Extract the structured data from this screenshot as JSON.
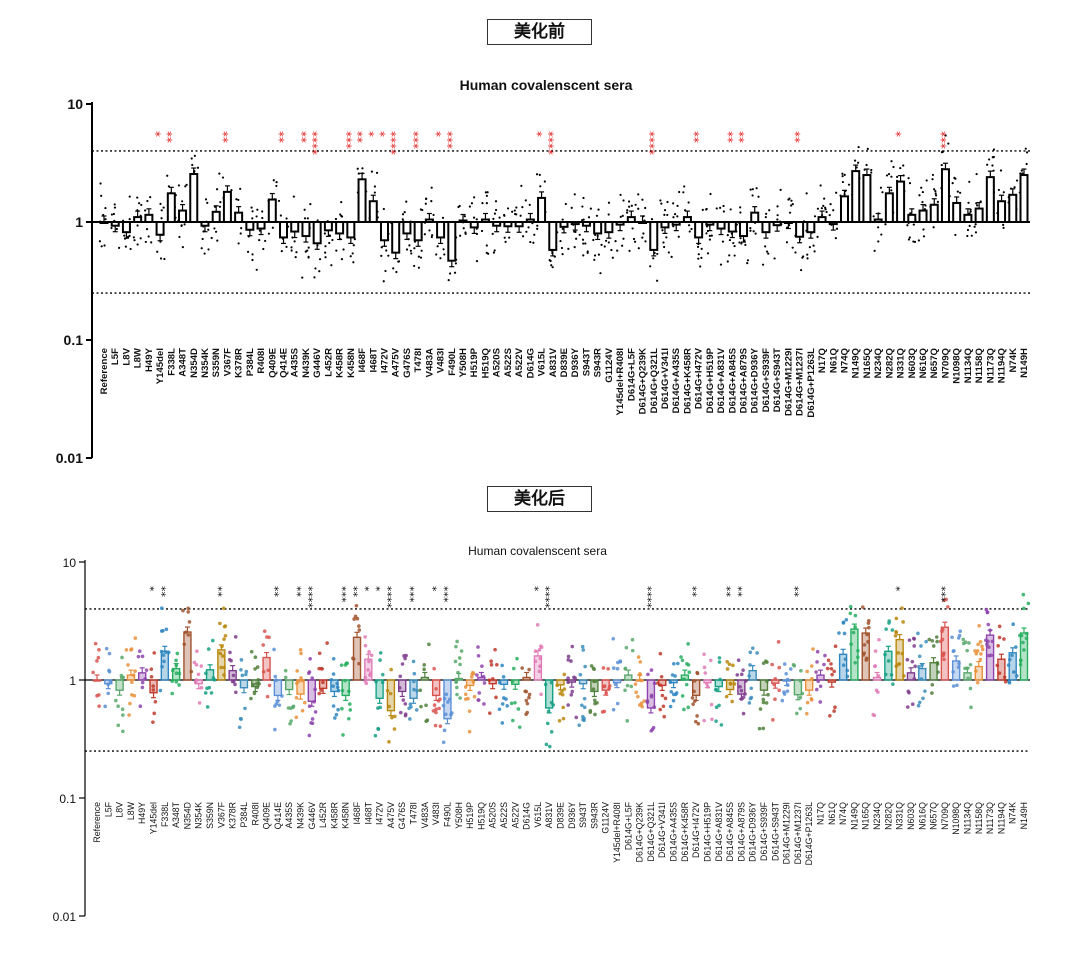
{
  "sections": {
    "before_label": "美化前",
    "after_label": "美化后"
  },
  "chart_data": [
    {
      "type": "bar",
      "variant": "before",
      "title": "Human covalenscent sera",
      "scale": "log",
      "ylim": [
        0.01,
        10
      ],
      "yticks": [
        "0.01",
        "0.1",
        "1",
        "10"
      ],
      "reference_lines": [
        4,
        0.25
      ],
      "bar_fill": "#ffffff",
      "bar_stroke": "#000000",
      "star_color": "#e01e1e",
      "categories": [
        "Reference",
        "L5F",
        "L8V",
        "L8W",
        "H49Y",
        "Y145del",
        "F338L",
        "A348T",
        "N354D",
        "N354K",
        "S359N",
        "V367F",
        "K378R",
        "P384L",
        "R408I",
        "Q409E",
        "Q414E",
        "A435S",
        "N439K",
        "G446V",
        "L452R",
        "K458R",
        "K458N",
        "I468F",
        "I468T",
        "I472V",
        "A475V",
        "G476S",
        "T478I",
        "V483A",
        "V483I",
        "F490L",
        "Y508H",
        "H519P",
        "H519Q",
        "A520S",
        "A522S",
        "A522V",
        "D614G",
        "V615L",
        "A831V",
        "D839E",
        "D936Y",
        "S943T",
        "S943R",
        "G1124V",
        "Y145del+R408I",
        "D614G+L5F",
        "D614G+Q239K",
        "D614G+Q321L",
        "D614G+V341I",
        "D614G+A435S",
        "D614G+K458R",
        "D614G+I472V",
        "D614G+H519P",
        "D614G+A831V",
        "D614G+A845S",
        "D614G+A879S",
        "D614G+D936Y",
        "D614G+S939F",
        "D614G+S943T",
        "D614G+M1229I",
        "D614G+M1237I",
        "D614G+P1263L",
        "N17Q",
        "N61Q",
        "N74Q",
        "N149Q",
        "N165Q",
        "N234Q",
        "N282Q",
        "N331Q",
        "N603Q",
        "N616Q",
        "N657Q",
        "N709Q",
        "N1098Q",
        "N1134Q",
        "N1158Q",
        "N1173Q",
        "N1194Q",
        "N74K",
        "N149H"
      ],
      "values": [
        1.0,
        0.93,
        0.82,
        1.1,
        1.15,
        0.78,
        1.75,
        1.25,
        2.55,
        0.93,
        1.22,
        1.8,
        1.2,
        0.86,
        0.88,
        1.55,
        0.74,
        0.83,
        0.76,
        0.66,
        0.85,
        0.8,
        0.74,
        2.3,
        1.5,
        0.7,
        0.55,
        0.8,
        0.7,
        1.05,
        0.74,
        0.47,
        1.03,
        0.9,
        1.05,
        0.93,
        0.92,
        0.92,
        1.05,
        1.6,
        0.58,
        0.91,
        0.96,
        0.93,
        0.8,
        0.82,
        0.95,
        1.1,
        1.0,
        0.58,
        0.9,
        0.95,
        1.1,
        0.74,
        0.95,
        0.88,
        0.83,
        0.76,
        1.2,
        0.82,
        0.94,
        0.99,
        0.75,
        0.82,
        1.1,
        0.96,
        1.65,
        2.7,
        2.5,
        1.05,
        1.75,
        2.2,
        1.15,
        1.25,
        1.4,
        2.8,
        1.45,
        1.15,
        1.3,
        2.4,
        1.5,
        1.7,
        2.5
      ],
      "significance": {
        "Y145del": "*",
        "F338L": "**",
        "V367F": "**",
        "Q414E": "**",
        "N439K": "**",
        "G446V": "****",
        "K458N": "***",
        "I468F": "**",
        "I468T": "*",
        "I472V": "*",
        "A475V": "****",
        "T478I": "***",
        "V483I": "*",
        "F490L": "***",
        "V615L": "*",
        "A831V": "****",
        "D614G+Q321L": "****",
        "D614G+I472V": "**",
        "D614G+A845S": "**",
        "D614G+A879S": "**",
        "D614G+M1237I": "**",
        "N331Q": "*",
        "N709Q": "***"
      }
    },
    {
      "type": "bar",
      "variant": "after",
      "title": "Human covalenscent sera",
      "scale": "log",
      "ylim": [
        0.01,
        10
      ],
      "yticks": [
        "0.01",
        "0.1",
        "1",
        "10"
      ],
      "reference_lines": [
        4,
        0.25
      ],
      "star_color": "#111111",
      "palette": [
        "#d9534f",
        "#5b8fd6",
        "#58a86b",
        "#e8913a",
        "#8e44ad",
        "#c0392b",
        "#2e86c1",
        "#27ae60",
        "#a0522d",
        "#e07bb6",
        "#16a085",
        "#b8860b",
        "#7f3c8d",
        "#3c8dbc",
        "#4f7f3a"
      ],
      "categories": [
        "Reference",
        "L5F",
        "L8V",
        "L8W",
        "H49Y",
        "Y145del",
        "F338L",
        "A348T",
        "N354D",
        "N354K",
        "S359N",
        "V367F",
        "K378R",
        "P384L",
        "R408I",
        "Q409E",
        "Q414E",
        "A435S",
        "N439K",
        "G446V",
        "L452R",
        "K458R",
        "K458N",
        "I468F",
        "I468T",
        "I472V",
        "A475V",
        "G476S",
        "T478I",
        "V483A",
        "V483I",
        "F490L",
        "Y508H",
        "H519P",
        "H519Q",
        "A520S",
        "A522S",
        "A522V",
        "D614G",
        "V615L",
        "A831V",
        "D839E",
        "D936Y",
        "S943T",
        "S943R",
        "G1124V",
        "Y145del+R408I",
        "D614G+L5F",
        "D614G+Q239K",
        "D614G+Q321L",
        "D614G+V341I",
        "D614G+A435S",
        "D614G+K458R",
        "D614G+I472V",
        "D614G+H519P",
        "D614G+A831V",
        "D614G+A845S",
        "D614G+A879S",
        "D614G+D936Y",
        "D614G+S939F",
        "D614G+S943T",
        "D614G+M1229I",
        "D614G+M1237I",
        "D614G+P1263L",
        "N17Q",
        "N61Q",
        "N74Q",
        "N149Q",
        "N165Q",
        "N234Q",
        "N282Q",
        "N331Q",
        "N603Q",
        "N616Q",
        "N657Q",
        "N709Q",
        "N1098Q",
        "N1134Q",
        "N1158Q",
        "N1173Q",
        "N1194Q",
        "N74K",
        "N149H"
      ],
      "values": [
        1.0,
        0.93,
        0.82,
        1.1,
        1.15,
        0.78,
        1.75,
        1.25,
        2.55,
        0.93,
        1.22,
        1.8,
        1.2,
        0.86,
        0.88,
        1.55,
        0.74,
        0.83,
        0.76,
        0.66,
        0.85,
        0.8,
        0.74,
        2.3,
        1.5,
        0.7,
        0.55,
        0.8,
        0.7,
        1.05,
        0.74,
        0.47,
        1.03,
        0.9,
        1.05,
        0.93,
        0.92,
        0.92,
        1.05,
        1.6,
        0.58,
        0.91,
        0.96,
        0.93,
        0.8,
        0.82,
        0.95,
        1.1,
        1.0,
        0.58,
        0.9,
        0.95,
        1.1,
        0.74,
        0.95,
        0.88,
        0.83,
        0.76,
        1.2,
        0.82,
        0.94,
        0.99,
        0.75,
        0.82,
        1.1,
        0.96,
        1.65,
        2.7,
        2.5,
        1.05,
        1.75,
        2.2,
        1.15,
        1.25,
        1.4,
        2.8,
        1.45,
        1.15,
        1.3,
        2.4,
        1.5,
        1.7,
        2.5
      ],
      "significance": {
        "Y145del": "*",
        "F338L": "**",
        "V367F": "**",
        "Q414E": "**",
        "N439K": "**",
        "G446V": "****",
        "K458N": "***",
        "I468F": "**",
        "I468T": "*",
        "I472V": "*",
        "A475V": "****",
        "T478I": "***",
        "V483I": "*",
        "F490L": "***",
        "V615L": "*",
        "A831V": "****",
        "D614G+Q321L": "****",
        "D614G+I472V": "**",
        "D614G+A845S": "**",
        "D614G+A879S": "**",
        "D614G+M1237I": "**",
        "N331Q": "*",
        "N709Q": "***"
      }
    }
  ]
}
